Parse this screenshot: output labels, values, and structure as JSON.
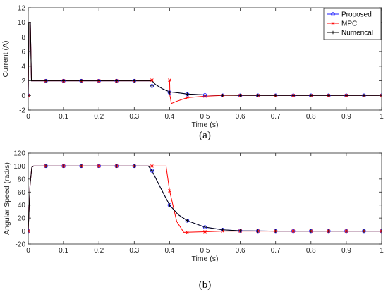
{
  "chart_data": [
    {
      "type": "line",
      "panel_label": "(a)",
      "xlabel": "Time (s)",
      "ylabel": "Current (A)",
      "xlim": [
        0,
        1
      ],
      "ylim": [
        -2,
        12
      ],
      "x_ticks": [
        0,
        0.1,
        0.2,
        0.3,
        0.4,
        0.5,
        0.6,
        0.7,
        0.8,
        0.9,
        1
      ],
      "x_tick_labels": [
        "0",
        "0.1",
        "0.2",
        "0.3",
        "0.4",
        "0.5",
        "0.6",
        "0.7",
        "0.8",
        "0.9",
        "1"
      ],
      "y_ticks": [
        -2,
        0,
        2,
        4,
        6,
        8,
        10,
        12
      ],
      "y_tick_labels": [
        "-2",
        "0",
        "2",
        "4",
        "6",
        "8",
        "10",
        "12"
      ],
      "grid": false,
      "legend": {
        "placement": "top-right"
      },
      "series": [
        {
          "name": "Proposed",
          "color": "#1f1fff",
          "marker": "circle",
          "line": [
            [
              0,
              0
            ],
            [
              0.002,
              10
            ],
            [
              0.006,
              10
            ],
            [
              0.009,
              2
            ],
            [
              0.35,
              2
            ],
            [
              0.36,
              1.5
            ],
            [
              0.38,
              0.9
            ],
            [
              0.4,
              0.5
            ],
            [
              0.45,
              0.2
            ],
            [
              0.5,
              0.08
            ],
            [
              0.6,
              0.02
            ],
            [
              0.7,
              0
            ],
            [
              1,
              0
            ]
          ],
          "markers_x": [
            0,
            0.05,
            0.1,
            0.15,
            0.2,
            0.25,
            0.3,
            0.35,
            0.4,
            0.45,
            0.5,
            0.55,
            0.6,
            0.65,
            0.7,
            0.75,
            0.8,
            0.85,
            0.9,
            0.95,
            1
          ],
          "markers_y": [
            0,
            2,
            2,
            2,
            2,
            2,
            2,
            1.3,
            0.4,
            0.15,
            0.05,
            0,
            0,
            0,
            0,
            0,
            0,
            0,
            0,
            0,
            0
          ]
        },
        {
          "name": "MPC",
          "color": "#ff0000",
          "marker": "x",
          "line": [
            [
              0,
              0
            ],
            [
              0.002,
              10
            ],
            [
              0.006,
              10
            ],
            [
              0.009,
              2
            ],
            [
              0.349,
              2
            ],
            [
              0.35,
              2.1
            ],
            [
              0.4,
              2.1
            ],
            [
              0.401,
              0
            ],
            [
              0.405,
              -1.1
            ],
            [
              0.42,
              -0.8
            ],
            [
              0.45,
              -0.3
            ],
            [
              0.5,
              -0.1
            ],
            [
              0.55,
              0
            ],
            [
              1,
              0
            ]
          ],
          "markers_x": [
            0,
            0.05,
            0.1,
            0.15,
            0.2,
            0.25,
            0.3,
            0.35,
            0.4,
            0.45,
            0.5,
            0.55,
            0.6,
            0.65,
            0.7,
            0.75,
            0.8,
            0.85,
            0.9,
            0.95,
            1
          ],
          "markers_y": [
            0,
            2,
            2,
            2,
            2,
            2,
            2,
            2.1,
            2.1,
            -0.3,
            -0.1,
            0,
            0,
            0,
            0,
            0,
            0,
            0,
            0,
            0,
            0
          ]
        },
        {
          "name": "Numerical",
          "color": "#000000",
          "marker": "plus",
          "line": [
            [
              0,
              0
            ],
            [
              0.002,
              10
            ],
            [
              0.006,
              10
            ],
            [
              0.009,
              2
            ],
            [
              0.35,
              2
            ],
            [
              0.36,
              1.5
            ],
            [
              0.38,
              0.9
            ],
            [
              0.4,
              0.5
            ],
            [
              0.45,
              0.2
            ],
            [
              0.5,
              0.08
            ],
            [
              0.6,
              0.02
            ],
            [
              0.7,
              0
            ],
            [
              1,
              0
            ]
          ],
          "markers_x": [
            0,
            0.05,
            0.1,
            0.15,
            0.2,
            0.25,
            0.3,
            0.35,
            0.4,
            0.45,
            0.5,
            0.55,
            0.6,
            0.65,
            0.7,
            0.75,
            0.8,
            0.85,
            0.9,
            0.95,
            1
          ],
          "markers_y": [
            0,
            2,
            2,
            2,
            2,
            2,
            2,
            1.3,
            0.4,
            0.15,
            0.05,
            0,
            0,
            0,
            0,
            0,
            0,
            0,
            0,
            0,
            0
          ]
        }
      ]
    },
    {
      "type": "line",
      "panel_label": "(b)",
      "xlabel": "Time (s)",
      "ylabel": "Angular Speed (rad/s)",
      "xlim": [
        0,
        1
      ],
      "ylim": [
        -20,
        120
      ],
      "x_ticks": [
        0,
        0.1,
        0.2,
        0.3,
        0.4,
        0.5,
        0.6,
        0.7,
        0.8,
        0.9,
        1
      ],
      "x_tick_labels": [
        "0",
        "0.1",
        "0.2",
        "0.3",
        "0.4",
        "0.5",
        "0.6",
        "0.7",
        "0.8",
        "0.9",
        "1"
      ],
      "y_ticks": [
        -20,
        0,
        20,
        40,
        60,
        80,
        100,
        120
      ],
      "y_tick_labels": [
        "-20",
        "0",
        "20",
        "40",
        "60",
        "80",
        "100",
        "120"
      ],
      "grid": false,
      "series": [
        {
          "name": "Proposed",
          "color": "#1f1fff",
          "marker": "circle",
          "line": [
            [
              0,
              0
            ],
            [
              0.005,
              70
            ],
            [
              0.01,
              98
            ],
            [
              0.015,
              100
            ],
            [
              0.34,
              100
            ],
            [
              0.35,
              93
            ],
            [
              0.375,
              66
            ],
            [
              0.4,
              40
            ],
            [
              0.425,
              25
            ],
            [
              0.45,
              16
            ],
            [
              0.5,
              6
            ],
            [
              0.55,
              2
            ],
            [
              0.6,
              0.5
            ],
            [
              0.7,
              0
            ],
            [
              1,
              0
            ]
          ],
          "markers_x": [
            0,
            0.05,
            0.1,
            0.15,
            0.2,
            0.25,
            0.3,
            0.35,
            0.4,
            0.45,
            0.5,
            0.55,
            0.6,
            0.65,
            0.7,
            0.75,
            0.8,
            0.85,
            0.9,
            0.95,
            1
          ],
          "markers_y": [
            0,
            100,
            100,
            100,
            100,
            100,
            100,
            93,
            40,
            16,
            6,
            2,
            0.5,
            0,
            0,
            0,
            0,
            0,
            0,
            0,
            0
          ]
        },
        {
          "name": "MPC",
          "color": "#ff0000",
          "marker": "x",
          "line": [
            [
              0,
              0
            ],
            [
              0.005,
              70
            ],
            [
              0.01,
              98
            ],
            [
              0.015,
              100
            ],
            [
              0.39,
              100
            ],
            [
              0.4,
              62
            ],
            [
              0.42,
              15
            ],
            [
              0.44,
              -2
            ],
            [
              0.5,
              -1
            ],
            [
              0.55,
              0
            ],
            [
              1,
              0
            ]
          ],
          "markers_x": [
            0,
            0.05,
            0.1,
            0.15,
            0.2,
            0.25,
            0.3,
            0.35,
            0.4,
            0.45,
            0.5,
            0.55,
            0.6,
            0.65,
            0.7,
            0.75,
            0.8,
            0.85,
            0.9,
            0.95,
            1
          ],
          "markers_y": [
            0,
            100,
            100,
            100,
            100,
            100,
            100,
            100,
            62,
            -2,
            -1,
            0,
            0,
            0,
            0,
            0,
            0,
            0,
            0,
            0,
            0
          ]
        },
        {
          "name": "Numerical",
          "color": "#000000",
          "marker": "plus",
          "line": [
            [
              0,
              0
            ],
            [
              0.005,
              70
            ],
            [
              0.01,
              98
            ],
            [
              0.015,
              100
            ],
            [
              0.34,
              100
            ],
            [
              0.35,
              93
            ],
            [
              0.375,
              66
            ],
            [
              0.4,
              40
            ],
            [
              0.425,
              25
            ],
            [
              0.45,
              16
            ],
            [
              0.5,
              6
            ],
            [
              0.55,
              2
            ],
            [
              0.6,
              0.5
            ],
            [
              0.7,
              0
            ],
            [
              1,
              0
            ]
          ],
          "markers_x": [
            0,
            0.05,
            0.1,
            0.15,
            0.2,
            0.25,
            0.3,
            0.35,
            0.4,
            0.45,
            0.5,
            0.55,
            0.6,
            0.65,
            0.7,
            0.75,
            0.8,
            0.85,
            0.9,
            0.95,
            1
          ],
          "markers_y": [
            0,
            100,
            100,
            100,
            100,
            100,
            100,
            93,
            40,
            16,
            6,
            2,
            0.5,
            0,
            0,
            0,
            0,
            0,
            0,
            0,
            0
          ]
        }
      ]
    }
  ]
}
